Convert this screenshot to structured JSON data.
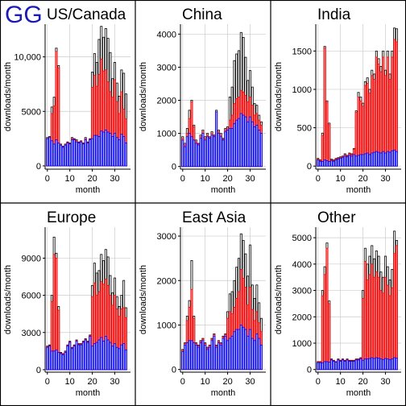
{
  "brand": "GG",
  "colors": {
    "black_bar": "#000000",
    "red_bar": "#ff0000",
    "blue_bar": "#0000ff",
    "red_fill": "#f08080",
    "blue_fill": "#a8a8f0",
    "grid": "#cccccc",
    "brand": "#1b1bb3"
  },
  "chart_data": [
    {
      "type": "bar",
      "title": "US/Canada",
      "xlabel": "month",
      "ylabel": "downloads/month",
      "xlim": [
        -1,
        37
      ],
      "ylim": [
        -300,
        13000
      ],
      "xticks": [
        0,
        10,
        20,
        30
      ],
      "yticks": [
        0,
        5000,
        10000
      ],
      "ytick_labels": [
        "0",
        "5000",
        "10,000"
      ],
      "series": [
        {
          "name": "total",
          "values": [
            2600,
            2700,
            5400,
            6300,
            10800,
            9200,
            2000,
            1800,
            2000,
            2200,
            2100,
            2600,
            2500,
            2400,
            2200,
            2300,
            2100,
            2600,
            2200,
            2500,
            8600,
            10300,
            9500,
            11600,
            12800,
            11800,
            12600,
            11700,
            10400,
            8000,
            9500,
            7600,
            6400,
            8800,
            8500,
            6600
          ]
        },
        {
          "name": "red",
          "values": [
            2500,
            2600,
            4800,
            5500,
            10500,
            9000,
            1950,
            1750,
            1950,
            2150,
            2050,
            2500,
            2450,
            2300,
            2150,
            2250,
            2050,
            2500,
            2150,
            2450,
            7200,
            8300,
            7300,
            8400,
            9800,
            8700,
            8800,
            7700,
            6800,
            6300,
            7900,
            5900,
            4800,
            6800,
            5200,
            4300
          ]
        },
        {
          "name": "blue",
          "values": [
            2500,
            2600,
            2300,
            2000,
            2400,
            2100,
            1900,
            1700,
            1900,
            2100,
            2000,
            2400,
            2400,
            2200,
            2100,
            2200,
            2000,
            2400,
            2100,
            2400,
            2500,
            2800,
            2800,
            2700,
            3200,
            3100,
            3300,
            3100,
            3000,
            2700,
            3000,
            2600,
            2400,
            2900,
            2700,
            2100
          ]
        }
      ]
    },
    {
      "type": "bar",
      "title": "China",
      "xlabel": "month",
      "ylabel": "downloads/month",
      "xlim": [
        -1,
        37
      ],
      "ylim": [
        -80,
        4300
      ],
      "xticks": [
        0,
        10,
        20,
        30
      ],
      "yticks": [
        0,
        1000,
        2000,
        3000,
        4000
      ],
      "ytick_labels": [
        "0",
        "1000",
        "2000",
        "3000",
        "4000"
      ],
      "series": [
        {
          "name": "total",
          "values": [
            900,
            700,
            1150,
            1700,
            2000,
            1250,
            800,
            700,
            950,
            1100,
            900,
            1000,
            900,
            1050,
            950,
            1700,
            1100,
            1000,
            850,
            1150,
            1200,
            2100,
            2400,
            3200,
            3400,
            3500,
            4050,
            3900,
            3300,
            2600,
            2900,
            2400,
            1900,
            1850,
            1550,
            1350
          ]
        },
        {
          "name": "red",
          "values": [
            850,
            650,
            1000,
            1450,
            1950,
            1200,
            750,
            680,
            900,
            1050,
            850,
            950,
            870,
            1000,
            920,
            1650,
            1050,
            950,
            820,
            1100,
            1150,
            1400,
            1550,
            1900,
            2050,
            2100,
            2300,
            2250,
            2150,
            1950,
            2100,
            1850,
            1550,
            1600,
            1400,
            1250
          ]
        },
        {
          "name": "blue",
          "values": [
            800,
            600,
            900,
            1000,
            900,
            800,
            700,
            650,
            850,
            1000,
            800,
            900,
            850,
            950,
            900,
            1650,
            1000,
            900,
            800,
            1050,
            1100,
            1150,
            1150,
            1300,
            1400,
            1450,
            1600,
            1550,
            1500,
            1350,
            1500,
            1350,
            1200,
            1250,
            1100,
            1000
          ]
        }
      ]
    },
    {
      "type": "bar",
      "title": "India",
      "xlabel": "month",
      "ylabel": "downloads/month",
      "xlim": [
        -1,
        37
      ],
      "ylim": [
        -40,
        1850
      ],
      "xticks": [
        0,
        10,
        20,
        30
      ],
      "yticks": [
        0,
        500,
        1000,
        1500
      ],
      "ytick_labels": [
        "0",
        "500",
        "1000",
        "1500"
      ],
      "series": [
        {
          "name": "total",
          "values": [
            100,
            80,
            430,
            1560,
            850,
            560,
            90,
            80,
            100,
            110,
            120,
            130,
            160,
            140,
            170,
            160,
            230,
            720,
            960,
            900,
            820,
            1100,
            1150,
            1000,
            1250,
            1200,
            1500,
            1400,
            1300,
            1500,
            1250,
            1500,
            1200,
            1500,
            1800,
            1790
          ]
        },
        {
          "name": "red",
          "values": [
            90,
            70,
            400,
            1540,
            830,
            540,
            80,
            70,
            90,
            100,
            110,
            120,
            150,
            130,
            160,
            150,
            220,
            700,
            900,
            850,
            780,
            1050,
            1080,
            950,
            1180,
            1130,
            1420,
            1330,
            1230,
            1420,
            1180,
            1420,
            1130,
            1420,
            1650,
            1620
          ]
        },
        {
          "name": "blue",
          "values": [
            80,
            60,
            60,
            80,
            70,
            60,
            70,
            60,
            80,
            90,
            100,
            110,
            130,
            120,
            140,
            130,
            150,
            130,
            140,
            150,
            150,
            160,
            170,
            150,
            170,
            180,
            190,
            180,
            170,
            190,
            170,
            190,
            180,
            200,
            210,
            190
          ]
        }
      ]
    },
    {
      "type": "bar",
      "title": "Europe",
      "xlabel": "month",
      "ylabel": "downloads/month",
      "xlim": [
        -1,
        37
      ],
      "ylim": [
        -200,
        11500
      ],
      "xticks": [
        0,
        10,
        20,
        30
      ],
      "yticks": [
        0,
        3000,
        6000,
        9000
      ],
      "ytick_labels": [
        "0",
        "3000",
        "6000",
        "9000"
      ],
      "series": [
        {
          "name": "total",
          "values": [
            1900,
            2000,
            6000,
            10700,
            9400,
            5100,
            1400,
            1300,
            1500,
            2000,
            2300,
            1800,
            2000,
            2400,
            2100,
            2100,
            2300,
            2500,
            2300,
            2800,
            6800,
            8600,
            7800,
            8000,
            9300,
            8800,
            9700,
            9100,
            7600,
            6200,
            7400,
            5900,
            5100,
            6000,
            7200,
            5000
          ]
        },
        {
          "name": "red",
          "values": [
            1850,
            1950,
            5500,
            9300,
            9000,
            4800,
            1350,
            1250,
            1450,
            1950,
            2250,
            1750,
            1950,
            2350,
            2050,
            2050,
            2250,
            2450,
            2250,
            2750,
            5900,
            7000,
            6000,
            6300,
            7100,
            6900,
            7300,
            6800,
            6000,
            5200,
            6000,
            4900,
            4300,
            4900,
            5000,
            4200
          ]
        },
        {
          "name": "blue",
          "values": [
            1800,
            1900,
            1500,
            1500,
            1600,
            1400,
            1300,
            1200,
            1400,
            1900,
            2200,
            1700,
            1900,
            2300,
            2000,
            2000,
            2200,
            2400,
            2200,
            2700,
            1900,
            2100,
            2200,
            2400,
            2600,
            2300,
            2700,
            2400,
            2200,
            1900,
            2100,
            1800,
            1700,
            2000,
            2100,
            1600
          ]
        }
      ]
    },
    {
      "type": "bar",
      "title": "East Asia",
      "xlabel": "month",
      "ylabel": "downloads/month",
      "xlim": [
        -1,
        37
      ],
      "ylim": [
        -60,
        3200
      ],
      "xticks": [
        0,
        10,
        20,
        30
      ],
      "yticks": [
        0,
        1000,
        2000,
        3000
      ],
      "ytick_labels": [
        "0",
        "1000",
        "2000",
        "3000"
      ],
      "series": [
        {
          "name": "total",
          "values": [
            450,
            600,
            1200,
            1550,
            2450,
            1200,
            600,
            550,
            650,
            700,
            600,
            500,
            550,
            700,
            800,
            550,
            650,
            600,
            750,
            800,
            1300,
            1700,
            1750,
            2000,
            2300,
            2500,
            3050,
            2900,
            2600,
            2100,
            2800,
            1900,
            1600,
            1900,
            1500,
            1150
          ]
        },
        {
          "name": "red",
          "values": [
            430,
            580,
            1100,
            1400,
            1800,
            1150,
            580,
            530,
            630,
            680,
            580,
            480,
            530,
            680,
            780,
            530,
            630,
            580,
            730,
            780,
            1150,
            1300,
            1250,
            1400,
            1600,
            1750,
            2250,
            2050,
            1850,
            1450,
            1850,
            1350,
            1100,
            1300,
            1050,
            850
          ]
        },
        {
          "name": "blue",
          "values": [
            400,
            550,
            600,
            650,
            650,
            600,
            550,
            500,
            600,
            650,
            550,
            450,
            500,
            650,
            750,
            500,
            600,
            550,
            700,
            750,
            650,
            700,
            750,
            850,
            900,
            900,
            1000,
            950,
            900,
            750,
            900,
            700,
            650,
            800,
            700,
            550
          ]
        }
      ]
    },
    {
      "type": "bar",
      "title": "Other",
      "xlabel": "month",
      "ylabel": "downloads/month",
      "xlim": [
        -1,
        37
      ],
      "ylim": [
        -100,
        5400
      ],
      "xticks": [
        0,
        10,
        20,
        30
      ],
      "yticks": [
        0,
        1000,
        2000,
        3000,
        4000,
        5000
      ],
      "ytick_labels": [
        "0",
        "1000",
        "2000",
        "3000",
        "4000",
        "5000"
      ],
      "series": [
        {
          "name": "total",
          "values": [
            300,
            300,
            3000,
            3900,
            4800,
            2600,
            400,
            350,
            300,
            400,
            350,
            400,
            350,
            400,
            350,
            350,
            350,
            400,
            400,
            450,
            3000,
            4600,
            4000,
            4300,
            4700,
            4200,
            4500,
            4300,
            3700,
            3500,
            4300,
            3900,
            3400,
            3800,
            5250,
            4900
          ]
        },
        {
          "name": "red",
          "values": [
            280,
            280,
            2800,
            3600,
            4600,
            2500,
            380,
            330,
            290,
            380,
            330,
            380,
            330,
            380,
            330,
            330,
            330,
            380,
            380,
            430,
            2700,
            4100,
            3400,
            3600,
            4000,
            3500,
            3700,
            3500,
            3000,
            2900,
            3500,
            3200,
            2800,
            3100,
            4400,
            4700
          ]
        },
        {
          "name": "blue",
          "values": [
            260,
            260,
            250,
            300,
            300,
            280,
            360,
            310,
            280,
            360,
            310,
            360,
            310,
            360,
            310,
            310,
            310,
            360,
            360,
            410,
            350,
            400,
            400,
            420,
            450,
            420,
            450,
            430,
            400,
            380,
            420,
            400,
            380,
            400,
            450,
            430
          ]
        }
      ]
    }
  ]
}
